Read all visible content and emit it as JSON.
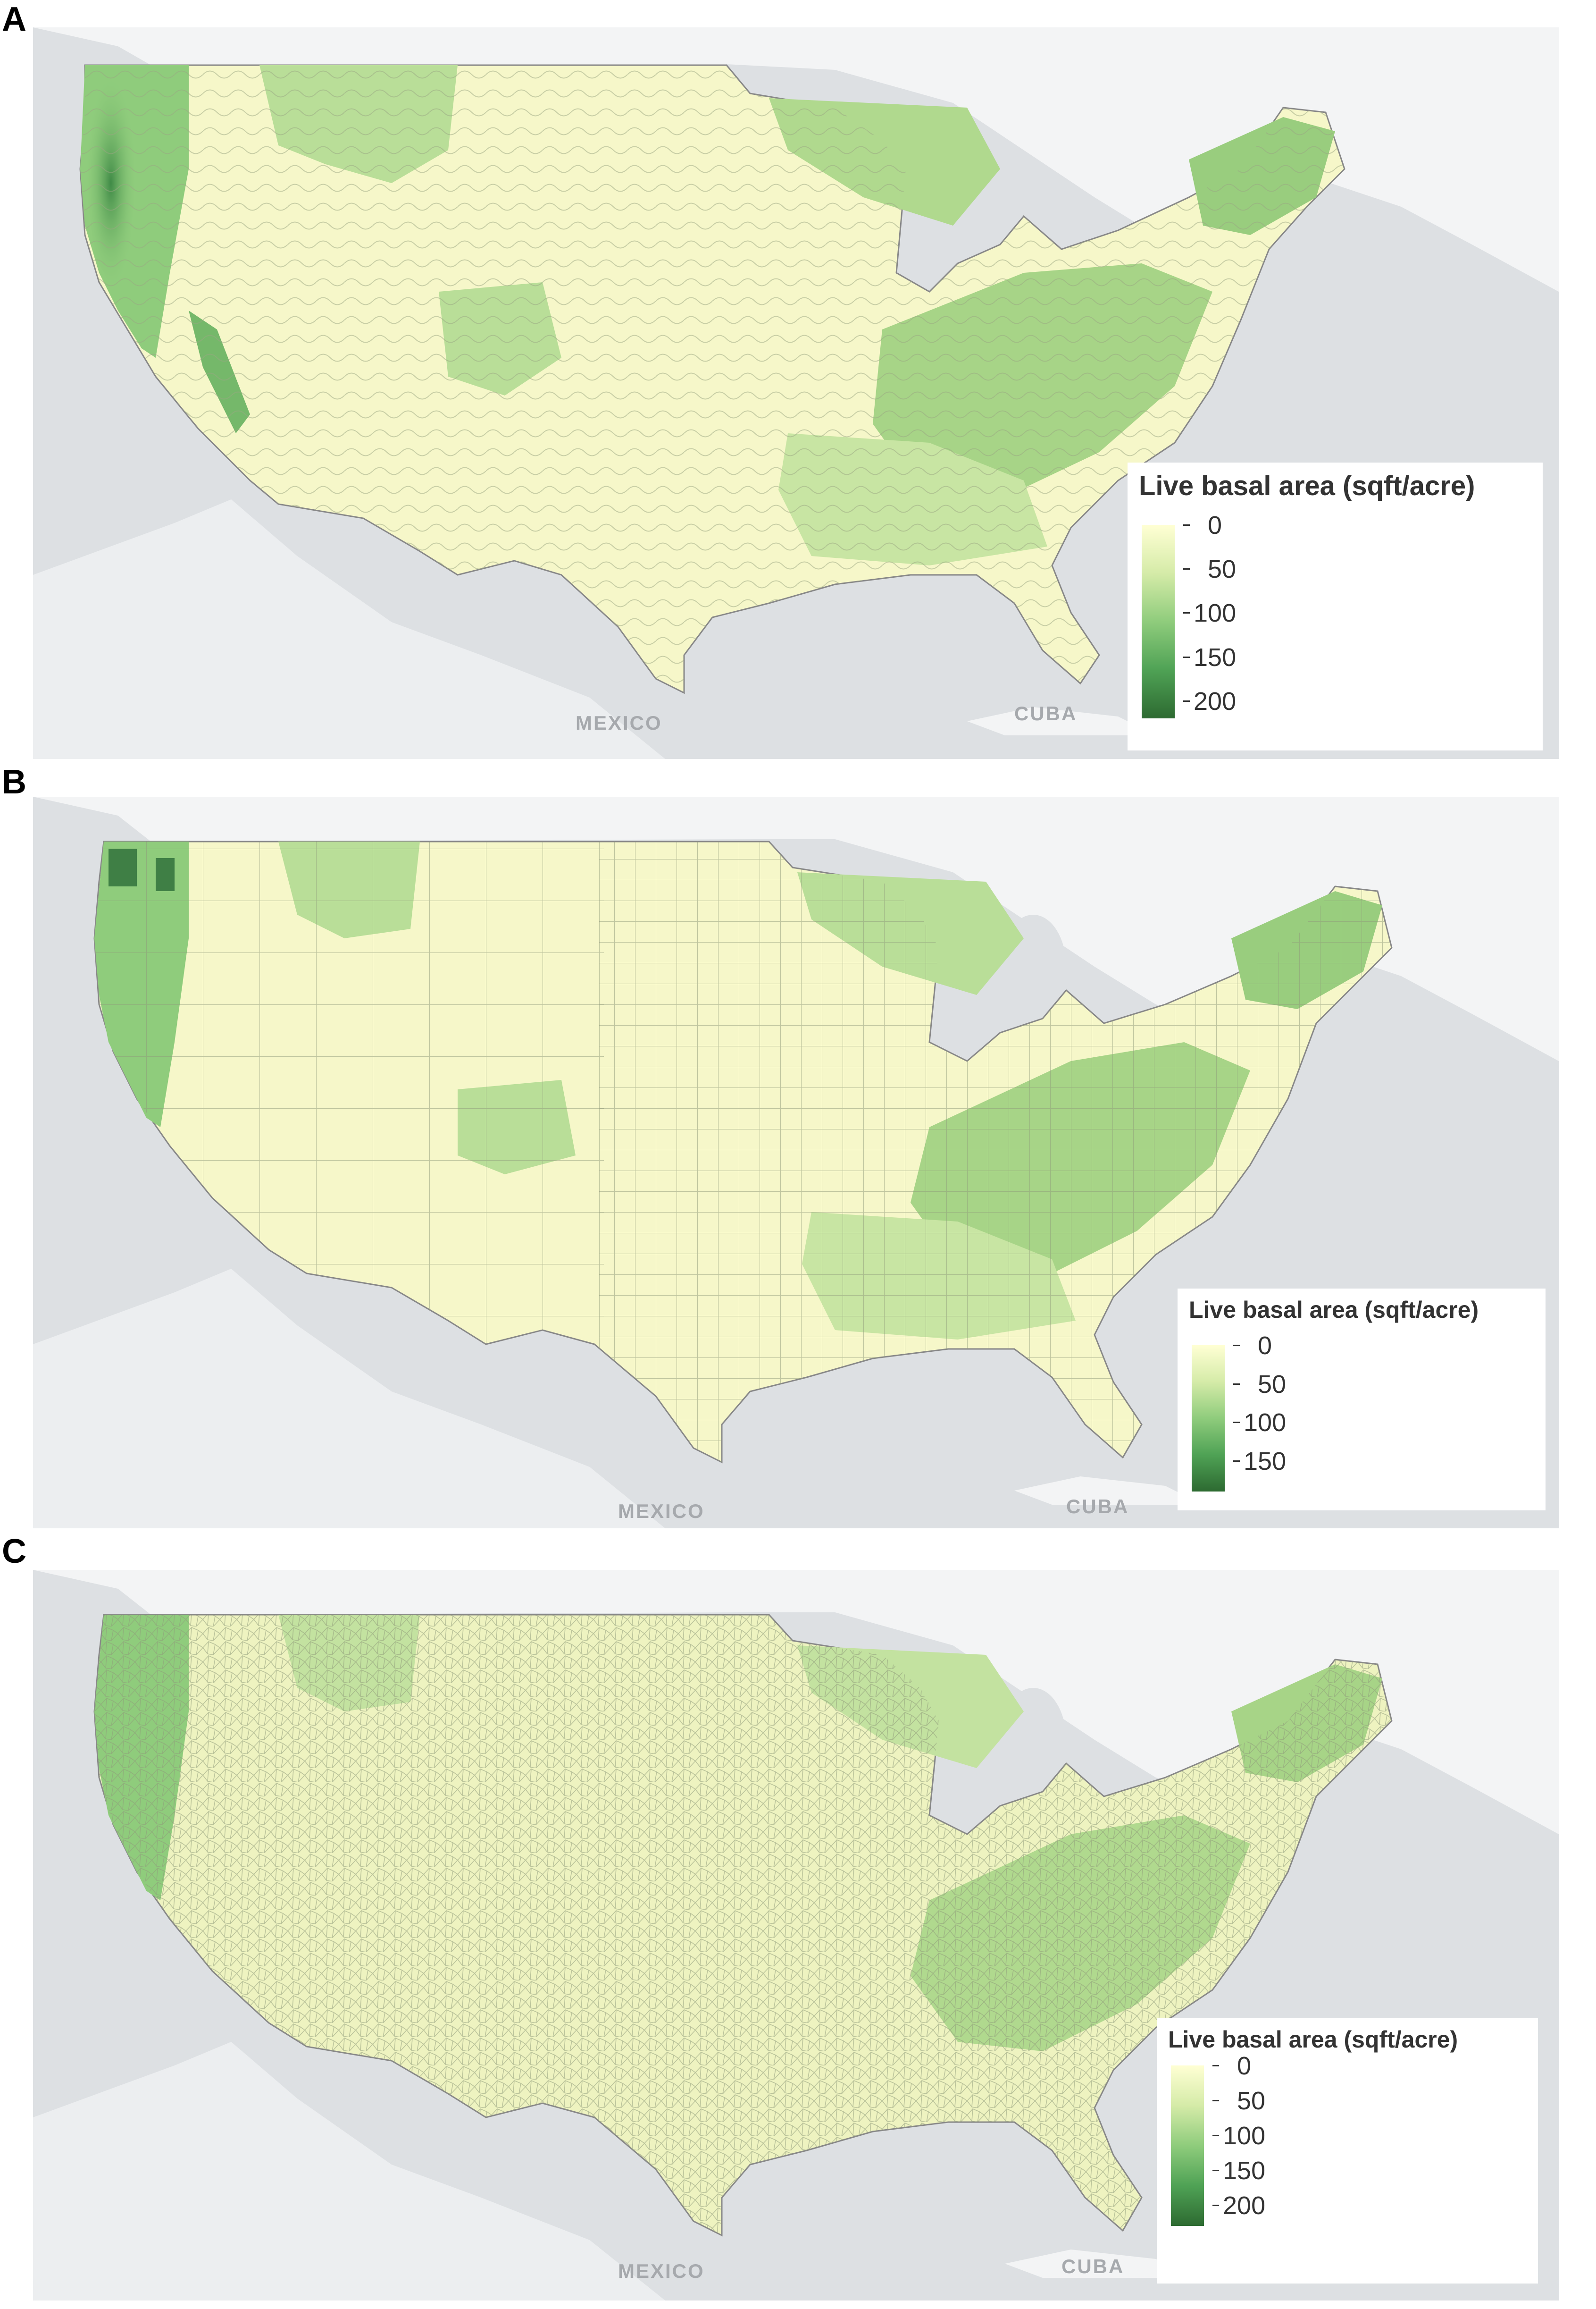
{
  "panels": [
    {
      "letter": "A",
      "mexico": "MEXICO",
      "cuba": "CUBA",
      "legend": {
        "title": "Live basal area (sqft/acre)",
        "ticks": [
          "0",
          "50",
          "100",
          "150",
          "200"
        ],
        "max": 220,
        "gradient": [
          "#ffffd4",
          "#d5eba8",
          "#8fcc7c",
          "#4fa255",
          "#2d6a31"
        ]
      }
    },
    {
      "letter": "B",
      "mexico": "MEXICO",
      "cuba": "CUBA",
      "legend": {
        "title": "Live basal area (sqft/acre)",
        "ticks": [
          "0",
          "50",
          "100",
          "150"
        ],
        "max": 190,
        "gradient": [
          "#ffffd4",
          "#d5eba8",
          "#8fcc7c",
          "#4fa255",
          "#2d6a31"
        ]
      }
    },
    {
      "letter": "C",
      "mexico": "MEXICO",
      "cuba": "CUBA",
      "legend": {
        "title": "Live basal area (sqft/acre)",
        "ticks": [
          "0",
          "50",
          "100",
          "150",
          "200"
        ],
        "max": 230,
        "gradient": [
          "#ffffd4",
          "#d5eba8",
          "#8fcc7c",
          "#4fa255",
          "#2d6a31"
        ]
      }
    }
  ]
}
